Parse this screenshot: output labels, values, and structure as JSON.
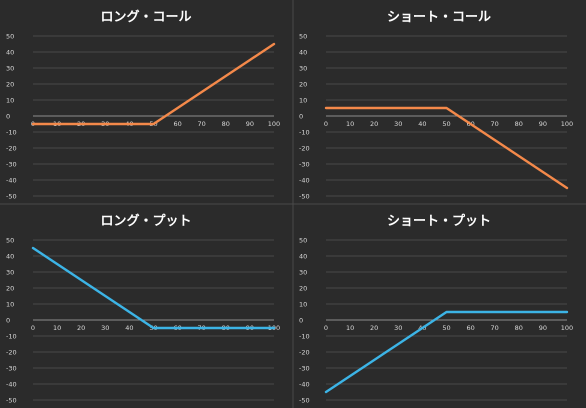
{
  "chart_data": [
    {
      "type": "line",
      "title": "ロング・コール",
      "x": [
        0,
        10,
        20,
        30,
        40,
        50,
        60,
        70,
        80,
        90,
        100
      ],
      "x_ticks": [
        "0",
        "10",
        "20",
        "30",
        "40",
        "50",
        "60",
        "70",
        "80",
        "90",
        "100"
      ],
      "y_ticks": [
        "50",
        "40",
        "30",
        "20",
        "10",
        "0",
        "-10",
        "-20",
        "-30",
        "-40",
        "-50"
      ],
      "ylim": [
        -50,
        50
      ],
      "series": [
        {
          "values": [
            -5,
            -5,
            -5,
            -5,
            -5,
            -5,
            5,
            15,
            25,
            35,
            45
          ],
          "color": "#f4894a"
        }
      ],
      "grid": true
    },
    {
      "type": "line",
      "title": "ショート・コール",
      "x": [
        0,
        10,
        20,
        30,
        40,
        50,
        60,
        70,
        80,
        90,
        100
      ],
      "x_ticks": [
        "0",
        "10",
        "20",
        "30",
        "40",
        "50",
        "60",
        "70",
        "80",
        "90",
        "100"
      ],
      "y_ticks": [
        "50",
        "40",
        "30",
        "20",
        "10",
        "0",
        "-10",
        "-20",
        "-30",
        "-40",
        "-50"
      ],
      "ylim": [
        -50,
        50
      ],
      "series": [
        {
          "values": [
            5,
            5,
            5,
            5,
            5,
            5,
            -5,
            -15,
            -25,
            -35,
            -45
          ],
          "color": "#f4894a"
        }
      ],
      "grid": true
    },
    {
      "type": "line",
      "title": "ロング・プット",
      "x": [
        0,
        10,
        20,
        30,
        40,
        50,
        60,
        70,
        80,
        90,
        100
      ],
      "x_ticks": [
        "0",
        "10",
        "20",
        "30",
        "40",
        "50",
        "60",
        "70",
        "80",
        "90",
        "100"
      ],
      "y_ticks": [
        "50",
        "40",
        "30",
        "20",
        "10",
        "0",
        "-10",
        "-20",
        "-30",
        "-40",
        "-50"
      ],
      "ylim": [
        -50,
        50
      ],
      "series": [
        {
          "values": [
            45,
            35,
            25,
            15,
            5,
            -5,
            -5,
            -5,
            -5,
            -5,
            -5
          ],
          "color": "#3cb4e6"
        }
      ],
      "grid": true
    },
    {
      "type": "line",
      "title": "ショート・プット",
      "x": [
        0,
        10,
        20,
        30,
        40,
        50,
        60,
        70,
        80,
        90,
        100
      ],
      "x_ticks": [
        "0",
        "10",
        "20",
        "30",
        "40",
        "50",
        "60",
        "70",
        "80",
        "90",
        "100"
      ],
      "y_ticks": [
        "50",
        "40",
        "30",
        "20",
        "10",
        "0",
        "-10",
        "-20",
        "-30",
        "-40",
        "-50"
      ],
      "ylim": [
        -50,
        50
      ],
      "series": [
        {
          "values": [
            -45,
            -35,
            -25,
            -15,
            -5,
            5,
            5,
            5,
            5,
            5,
            5
          ],
          "color": "#3cb4e6"
        }
      ],
      "grid": true
    }
  ]
}
